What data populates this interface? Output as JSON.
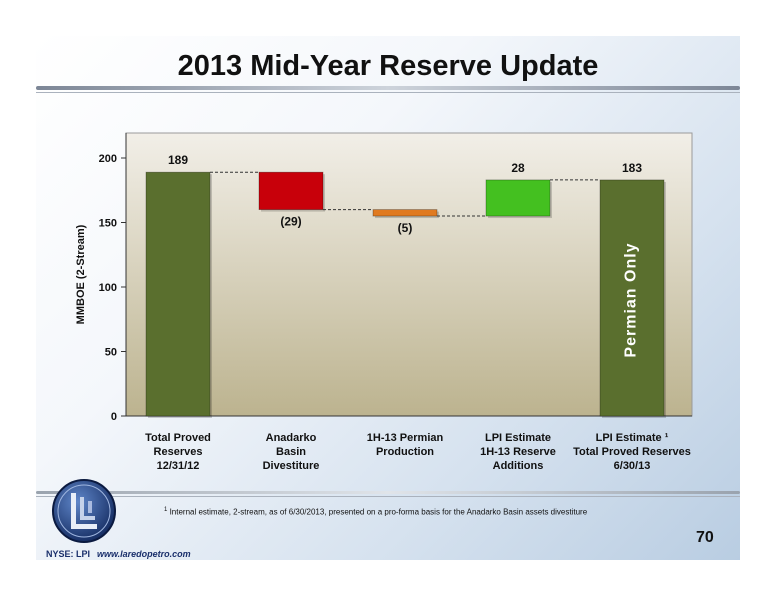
{
  "title": "2013 Mid-Year Reserve Update",
  "footnote_marker": "1",
  "footnote": "Internal estimate, 2-stream, as of 6/30/2013, presented on a pro-forma basis for the Anadarko Basin assets divestiture",
  "page_number": "70",
  "ticker": "NYSE: LPI",
  "website": "www.laredopetro.com",
  "annotation": "Permian Only",
  "colors": {
    "total": "#5a6f2e",
    "decrease": "#c8000a",
    "production": "#e07a20",
    "increase": "#44c020",
    "plot_bg_top": "#f2efe8",
    "plot_bg_bottom": "#bcb38f"
  },
  "chart_data": {
    "type": "bar",
    "subtype": "waterfall",
    "ylabel": "MMBOE (2-Stream)",
    "ylim": [
      0,
      220
    ],
    "yticks": [
      0,
      50,
      100,
      150,
      200
    ],
    "bars": [
      {
        "label_lines": [
          "Total Proved",
          "Reserves",
          "12/31/12"
        ],
        "kind": "total",
        "start": 0,
        "end": 189,
        "data_label": "189"
      },
      {
        "label_lines": [
          "Anadarko",
          "Basin",
          "Divestiture"
        ],
        "kind": "decrease",
        "start": 189,
        "end": 160,
        "data_label": "(29)"
      },
      {
        "label_lines": [
          "1H-13 Permian",
          "Production"
        ],
        "kind": "production",
        "start": 160,
        "end": 155,
        "data_label": "(5)"
      },
      {
        "label_lines": [
          "LPI Estimate",
          "1H-13 Reserve",
          "Additions"
        ],
        "kind": "increase",
        "start": 155,
        "end": 183,
        "data_label": "28"
      },
      {
        "label_lines": [
          "LPI Estimate ¹",
          "Total Proved Reserves",
          "6/30/13"
        ],
        "kind": "total",
        "start": 0,
        "end": 183,
        "data_label": "183"
      }
    ]
  }
}
